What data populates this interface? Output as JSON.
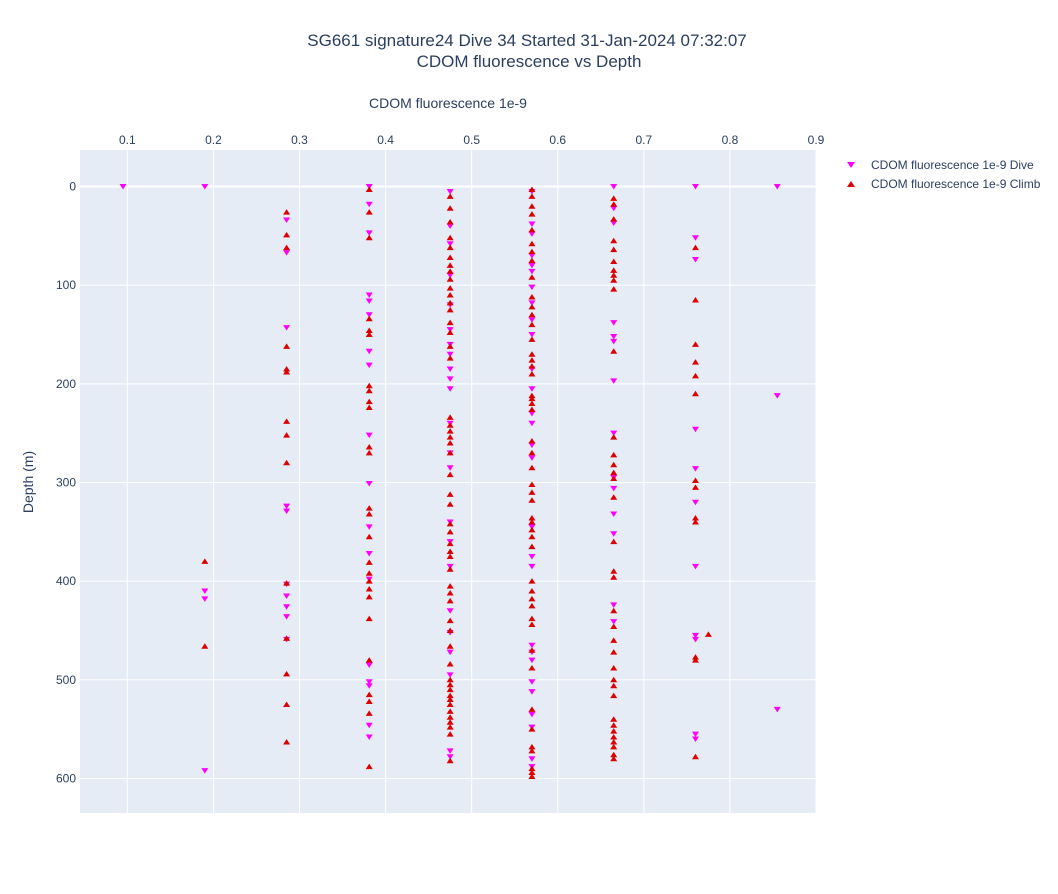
{
  "chart_data": {
    "type": "scatter",
    "title": "SG661 signature24 Dive 34 Started 31-Jan-2024 07:32:07",
    "subtitle": "CDOM fluorescence vs Depth",
    "xlabel": "CDOM fluorescence 1e-9",
    "ylabel": "Depth (m)",
    "xlim": [
      0.045,
      0.9
    ],
    "ylim": [
      -37,
      635
    ],
    "x_axis_side": "top",
    "y_axis_reversed": true,
    "x_ticks": [
      0.1,
      0.2,
      0.3,
      0.4,
      0.5,
      0.6,
      0.7,
      0.8,
      0.9
    ],
    "x_tick_labels": [
      "0.1",
      "0.2",
      "0.3",
      "0.4",
      "0.5",
      "0.6",
      "0.7",
      "0.8",
      "0.9"
    ],
    "y_ticks": [
      0,
      100,
      200,
      300,
      400,
      500,
      600
    ],
    "y_tick_labels": [
      "0",
      "100",
      "200",
      "300",
      "400",
      "500",
      "600"
    ],
    "grid": true,
    "legend_position": "top-right",
    "colors": {
      "plot_bg": "#e5ecf6",
      "grid": "#ffffff",
      "dive": "#ff00ff",
      "climb": "#dd0000",
      "text": "#2a3f5f"
    },
    "series": [
      {
        "name": "CDOM fluorescence 1e-9 Dive",
        "marker": "triangle-down",
        "points": [
          [
            0.095,
            0
          ],
          [
            0.19,
            0
          ],
          [
            0.381,
            0
          ],
          [
            0.665,
            0
          ],
          [
            0.76,
            0
          ],
          [
            0.855,
            0
          ],
          [
            0.475,
            5
          ],
          [
            0.57,
            5
          ],
          [
            0.381,
            18
          ],
          [
            0.665,
            22
          ],
          [
            0.285,
            34
          ],
          [
            0.665,
            37
          ],
          [
            0.57,
            38
          ],
          [
            0.475,
            40
          ],
          [
            0.381,
            47
          ],
          [
            0.57,
            48
          ],
          [
            0.76,
            52
          ],
          [
            0.475,
            58
          ],
          [
            0.285,
            67
          ],
          [
            0.57,
            70
          ],
          [
            0.76,
            74
          ],
          [
            0.57,
            80
          ],
          [
            0.57,
            86
          ],
          [
            0.475,
            90
          ],
          [
            0.57,
            102
          ],
          [
            0.381,
            110
          ],
          [
            0.381,
            116
          ],
          [
            0.57,
            118
          ],
          [
            0.475,
            120
          ],
          [
            0.381,
            130
          ],
          [
            0.57,
            135
          ],
          [
            0.665,
            138
          ],
          [
            0.285,
            143
          ],
          [
            0.475,
            145
          ],
          [
            0.57,
            150
          ],
          [
            0.665,
            152
          ],
          [
            0.665,
            157
          ],
          [
            0.475,
            160
          ],
          [
            0.381,
            167
          ],
          [
            0.475,
            170
          ],
          [
            0.381,
            181
          ],
          [
            0.475,
            185
          ],
          [
            0.57,
            185
          ],
          [
            0.475,
            195
          ],
          [
            0.665,
            197
          ],
          [
            0.475,
            205
          ],
          [
            0.57,
            205
          ],
          [
            0.855,
            212
          ],
          [
            0.57,
            230
          ],
          [
            0.475,
            240
          ],
          [
            0.57,
            240
          ],
          [
            0.76,
            246
          ],
          [
            0.665,
            250
          ],
          [
            0.381,
            252
          ],
          [
            0.57,
            262
          ],
          [
            0.475,
            270
          ],
          [
            0.57,
            275
          ],
          [
            0.475,
            285
          ],
          [
            0.76,
            286
          ],
          [
            0.665,
            295
          ],
          [
            0.381,
            301
          ],
          [
            0.665,
            306
          ],
          [
            0.76,
            320
          ],
          [
            0.285,
            324
          ],
          [
            0.285,
            329
          ],
          [
            0.665,
            332
          ],
          [
            0.475,
            340
          ],
          [
            0.381,
            345
          ],
          [
            0.57,
            345
          ],
          [
            0.665,
            352
          ],
          [
            0.475,
            360
          ],
          [
            0.381,
            372
          ],
          [
            0.57,
            375
          ],
          [
            0.475,
            385
          ],
          [
            0.57,
            385
          ],
          [
            0.76,
            385
          ],
          [
            0.381,
            398
          ],
          [
            0.285,
            403
          ],
          [
            0.19,
            410
          ],
          [
            0.285,
            415
          ],
          [
            0.19,
            418
          ],
          [
            0.665,
            424
          ],
          [
            0.285,
            426
          ],
          [
            0.475,
            430
          ],
          [
            0.285,
            436
          ],
          [
            0.665,
            441
          ],
          [
            0.475,
            452
          ],
          [
            0.76,
            455
          ],
          [
            0.285,
            459
          ],
          [
            0.76,
            459
          ],
          [
            0.57,
            465
          ],
          [
            0.475,
            472
          ],
          [
            0.57,
            472
          ],
          [
            0.57,
            480
          ],
          [
            0.381,
            485
          ],
          [
            0.475,
            495
          ],
          [
            0.381,
            502
          ],
          [
            0.57,
            502
          ],
          [
            0.381,
            506
          ],
          [
            0.57,
            512
          ],
          [
            0.855,
            530
          ],
          [
            0.57,
            535
          ],
          [
            0.381,
            546
          ],
          [
            0.57,
            548
          ],
          [
            0.76,
            555
          ],
          [
            0.381,
            558
          ],
          [
            0.76,
            560
          ],
          [
            0.475,
            572
          ],
          [
            0.475,
            578
          ],
          [
            0.57,
            580
          ],
          [
            0.57,
            588
          ],
          [
            0.19,
            592
          ]
        ]
      },
      {
        "name": "CDOM fluorescence 1e-9 Climb",
        "marker": "triangle-up",
        "points": [
          [
            0.381,
            3
          ],
          [
            0.57,
            3
          ],
          [
            0.475,
            10
          ],
          [
            0.57,
            10
          ],
          [
            0.665,
            12
          ],
          [
            0.665,
            18
          ],
          [
            0.57,
            20
          ],
          [
            0.475,
            22
          ],
          [
            0.285,
            26
          ],
          [
            0.381,
            26
          ],
          [
            0.57,
            28
          ],
          [
            0.665,
            33
          ],
          [
            0.475,
            36
          ],
          [
            0.57,
            44
          ],
          [
            0.285,
            49
          ],
          [
            0.381,
            52
          ],
          [
            0.475,
            52
          ],
          [
            0.665,
            55
          ],
          [
            0.57,
            58
          ],
          [
            0.285,
            62
          ],
          [
            0.475,
            62
          ],
          [
            0.76,
            62
          ],
          [
            0.665,
            64
          ],
          [
            0.57,
            66
          ],
          [
            0.475,
            72
          ],
          [
            0.57,
            75
          ],
          [
            0.665,
            76
          ],
          [
            0.475,
            80
          ],
          [
            0.665,
            85
          ],
          [
            0.475,
            86
          ],
          [
            0.665,
            90
          ],
          [
            0.57,
            92
          ],
          [
            0.475,
            94
          ],
          [
            0.665,
            95
          ],
          [
            0.475,
            103
          ],
          [
            0.665,
            104
          ],
          [
            0.475,
            110
          ],
          [
            0.57,
            112
          ],
          [
            0.76,
            115
          ],
          [
            0.475,
            118
          ],
          [
            0.57,
            122
          ],
          [
            0.475,
            125
          ],
          [
            0.57,
            130
          ],
          [
            0.381,
            134
          ],
          [
            0.475,
            138
          ],
          [
            0.57,
            140
          ],
          [
            0.381,
            146
          ],
          [
            0.475,
            148
          ],
          [
            0.381,
            150
          ],
          [
            0.57,
            155
          ],
          [
            0.76,
            160
          ],
          [
            0.285,
            162
          ],
          [
            0.475,
            162
          ],
          [
            0.665,
            167
          ],
          [
            0.57,
            170
          ],
          [
            0.475,
            174
          ],
          [
            0.57,
            176
          ],
          [
            0.76,
            178
          ],
          [
            0.57,
            182
          ],
          [
            0.285,
            185
          ],
          [
            0.285,
            188
          ],
          [
            0.57,
            190
          ],
          [
            0.76,
            192
          ],
          [
            0.381,
            202
          ],
          [
            0.381,
            207
          ],
          [
            0.76,
            210
          ],
          [
            0.57,
            212
          ],
          [
            0.57,
            215
          ],
          [
            0.381,
            218
          ],
          [
            0.57,
            220
          ],
          [
            0.381,
            224
          ],
          [
            0.57,
            226
          ],
          [
            0.475,
            234
          ],
          [
            0.285,
            238
          ],
          [
            0.475,
            242
          ],
          [
            0.475,
            248
          ],
          [
            0.475,
            254
          ],
          [
            0.285,
            252
          ],
          [
            0.665,
            254
          ],
          [
            0.57,
            258
          ],
          [
            0.475,
            260
          ],
          [
            0.381,
            264
          ],
          [
            0.381,
            270
          ],
          [
            0.475,
            270
          ],
          [
            0.57,
            270
          ],
          [
            0.665,
            272
          ],
          [
            0.285,
            280
          ],
          [
            0.665,
            282
          ],
          [
            0.57,
            285
          ],
          [
            0.665,
            290
          ],
          [
            0.475,
            292
          ],
          [
            0.665,
            296
          ],
          [
            0.76,
            298
          ],
          [
            0.57,
            302
          ],
          [
            0.76,
            305
          ],
          [
            0.57,
            310
          ],
          [
            0.475,
            312
          ],
          [
            0.665,
            315
          ],
          [
            0.57,
            318
          ],
          [
            0.475,
            322
          ],
          [
            0.381,
            326
          ],
          [
            0.381,
            332
          ],
          [
            0.57,
            336
          ],
          [
            0.76,
            336
          ],
          [
            0.57,
            340
          ],
          [
            0.76,
            340
          ],
          [
            0.475,
            342
          ],
          [
            0.57,
            348
          ],
          [
            0.475,
            350
          ],
          [
            0.381,
            355
          ],
          [
            0.57,
            355
          ],
          [
            0.665,
            360
          ],
          [
            0.475,
            362
          ],
          [
            0.57,
            365
          ],
          [
            0.475,
            370
          ],
          [
            0.475,
            375
          ],
          [
            0.19,
            380
          ],
          [
            0.381,
            381
          ],
          [
            0.475,
            388
          ],
          [
            0.665,
            390
          ],
          [
            0.381,
            392
          ],
          [
            0.665,
            396
          ],
          [
            0.381,
            400
          ],
          [
            0.57,
            400
          ],
          [
            0.285,
            402
          ],
          [
            0.475,
            405
          ],
          [
            0.381,
            408
          ],
          [
            0.57,
            410
          ],
          [
            0.475,
            412
          ],
          [
            0.381,
            416
          ],
          [
            0.57,
            418
          ],
          [
            0.475,
            420
          ],
          [
            0.57,
            425
          ],
          [
            0.665,
            430
          ],
          [
            0.381,
            438
          ],
          [
            0.57,
            438
          ],
          [
            0.475,
            440
          ],
          [
            0.57,
            444
          ],
          [
            0.665,
            446
          ],
          [
            0.475,
            450
          ],
          [
            0.775,
            454
          ],
          [
            0.285,
            458
          ],
          [
            0.665,
            460
          ],
          [
            0.19,
            466
          ],
          [
            0.475,
            466
          ],
          [
            0.57,
            470
          ],
          [
            0.665,
            472
          ],
          [
            0.76,
            477
          ],
          [
            0.76,
            480
          ],
          [
            0.381,
            480
          ],
          [
            0.475,
            484
          ],
          [
            0.57,
            488
          ],
          [
            0.665,
            488
          ],
          [
            0.285,
            494
          ],
          [
            0.475,
            500
          ],
          [
            0.665,
            500
          ],
          [
            0.475,
            505
          ],
          [
            0.665,
            506
          ],
          [
            0.475,
            510
          ],
          [
            0.381,
            515
          ],
          [
            0.475,
            516
          ],
          [
            0.665,
            516
          ],
          [
            0.475,
            520
          ],
          [
            0.381,
            522
          ],
          [
            0.285,
            525
          ],
          [
            0.475,
            525
          ],
          [
            0.57,
            530
          ],
          [
            0.475,
            532
          ],
          [
            0.381,
            534
          ],
          [
            0.475,
            538
          ],
          [
            0.665,
            540
          ],
          [
            0.475,
            543
          ],
          [
            0.665,
            546
          ],
          [
            0.475,
            548
          ],
          [
            0.57,
            550
          ],
          [
            0.665,
            552
          ],
          [
            0.475,
            555
          ],
          [
            0.665,
            558
          ],
          [
            0.285,
            563
          ],
          [
            0.665,
            563
          ],
          [
            0.57,
            568
          ],
          [
            0.665,
            568
          ],
          [
            0.57,
            572
          ],
          [
            0.665,
            576
          ],
          [
            0.475,
            582
          ],
          [
            0.76,
            578
          ],
          [
            0.665,
            580
          ],
          [
            0.381,
            588
          ],
          [
            0.57,
            590
          ],
          [
            0.57,
            594
          ],
          [
            0.57,
            598
          ]
        ]
      }
    ]
  }
}
